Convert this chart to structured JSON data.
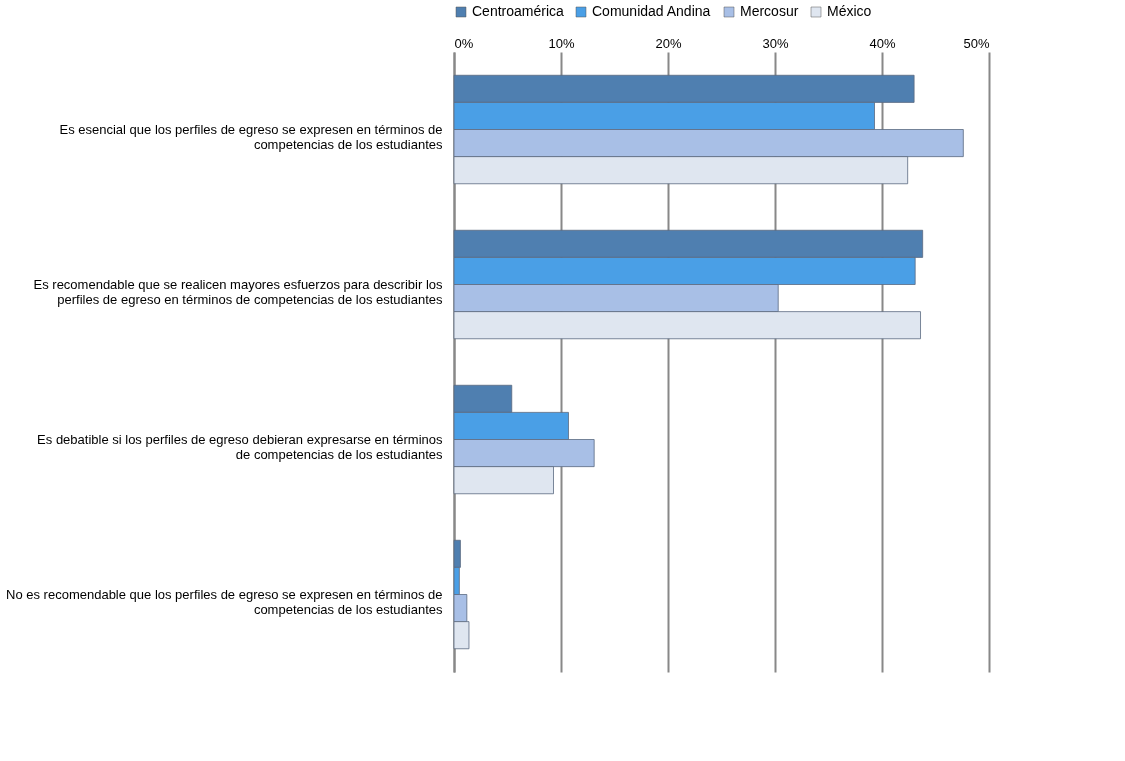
{
  "chart_data": {
    "type": "bar",
    "orientation": "horizontal",
    "categories": [
      "Es esencial que los perfiles de egreso se expresen en términos de competencias de los estudiantes",
      "Es recomendable que se realicen mayores esfuerzos para describir los perfiles de egreso en términos de competencias de los estudiantes",
      "Es debatible si los perfiles de egreso debieran expresarse en términos de competencias de los estudiantes",
      "No es recomendable que los perfiles de egreso se expresen en términos de competencias de los estudiantes"
    ],
    "series": [
      {
        "name": "Centroamérica",
        "color": "#4f7fb0",
        "values": [
          43.0,
          43.8,
          5.4,
          0.6
        ]
      },
      {
        "name": "Comunidad Andina",
        "color": "#4a9fe6",
        "values": [
          39.3,
          43.1,
          10.7,
          0.5
        ]
      },
      {
        "name": "Mercosur",
        "color": "#a8bfe6",
        "values": [
          47.6,
          30.3,
          13.1,
          1.2
        ]
      },
      {
        "name": "México",
        "color": "#dfe6f0",
        "values": [
          42.4,
          43.6,
          9.3,
          1.4
        ]
      }
    ],
    "xlim": [
      0,
      50
    ],
    "xticks": [
      {
        "value": 0,
        "label": "0%"
      },
      {
        "value": 10,
        "label": "10%"
      },
      {
        "value": 20,
        "label": "20%"
      },
      {
        "value": 30,
        "label": "30%"
      },
      {
        "value": 40,
        "label": "40%"
      },
      {
        "value": 50,
        "label": "50%"
      }
    ],
    "grid": "x",
    "legend": "top"
  }
}
